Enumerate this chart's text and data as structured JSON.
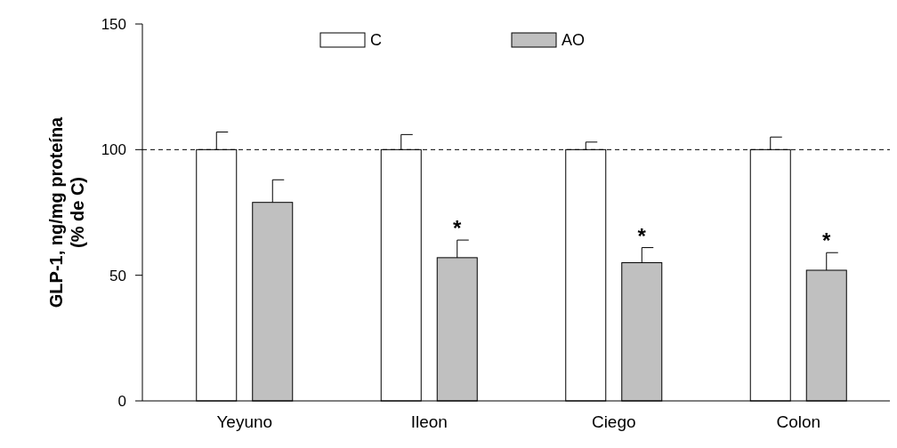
{
  "chart_data": {
    "type": "bar",
    "ylabel": "GLP-1, ng/mg proteína\n(% de C)",
    "categories": [
      "Yeyuno",
      "Ileon",
      "Ciego",
      "Colon"
    ],
    "series": [
      {
        "name": "C",
        "color": "#ffffff",
        "values": [
          100,
          100,
          100,
          100
        ],
        "errors": [
          [
            100,
            107
          ],
          [
            100,
            106
          ],
          [
            100,
            103
          ],
          [
            100,
            105
          ]
        ]
      },
      {
        "name": "AO",
        "color": "#c0c0c0",
        "values": [
          79,
          57,
          55,
          52
        ],
        "errors": [
          [
            79,
            88
          ],
          [
            57,
            64
          ],
          [
            55,
            61
          ],
          [
            52,
            59
          ]
        ]
      }
    ],
    "ylim": [
      0,
      150
    ],
    "yticks": [
      0,
      50,
      100,
      150
    ],
    "grid": false,
    "legend": "top",
    "ref_lines": [
      {
        "axis": "y",
        "value": 100,
        "line_style": "dashed",
        "color": "#000000"
      }
    ],
    "annotations": [
      "*",
      "*",
      "*"
    ]
  }
}
